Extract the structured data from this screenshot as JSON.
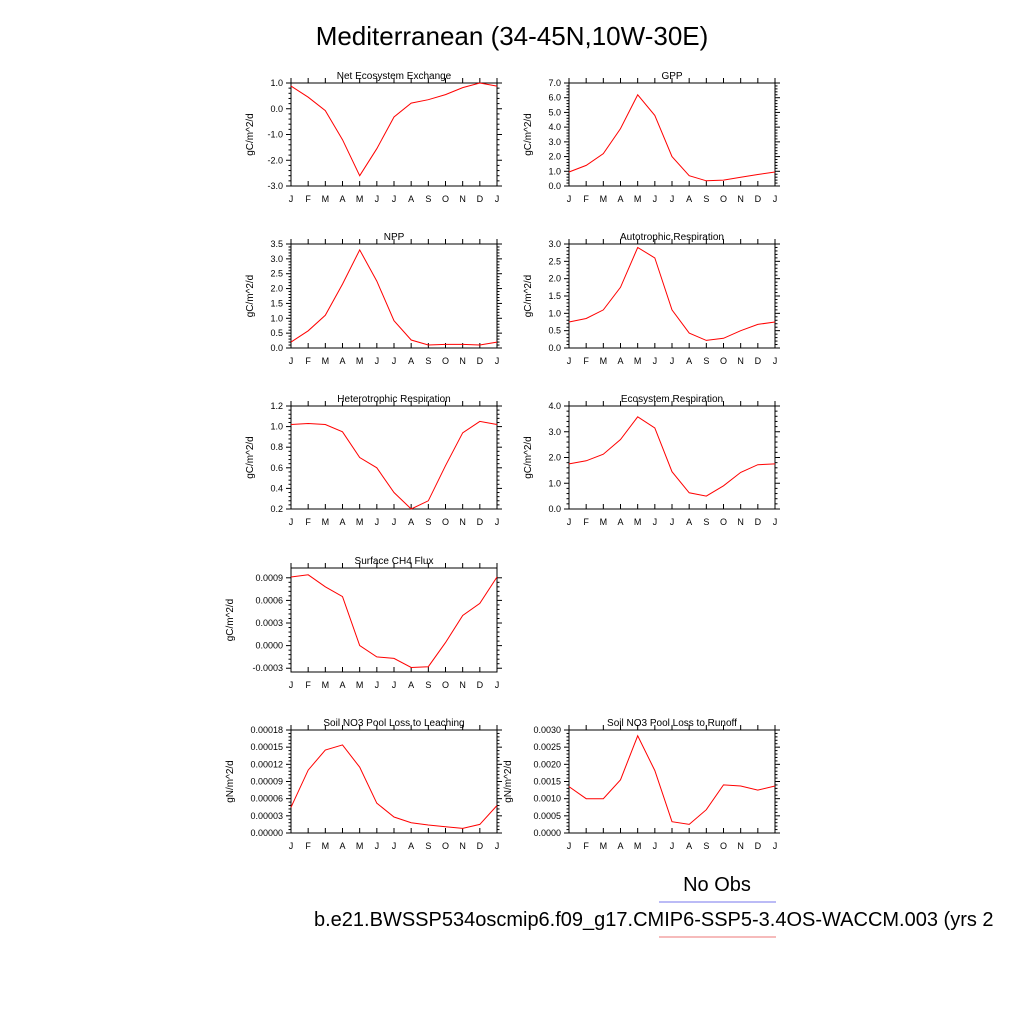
{
  "figure": {
    "title": "Mediterranean (34-45N,10W-30E)",
    "legend_label": "No Obs",
    "legend_line_colors": [
      "#7777ee",
      "#ee7777"
    ],
    "case_id": "b.e21.BWSSP534oscmip6.f09_g17.CMIP6-SSP5-3.4OS-WACCM.003 (yrs 2",
    "series_color": "#ff0000"
  },
  "chart_data": [
    {
      "type": "line",
      "title": "Net Ecosystem Exchange",
      "ylabel": "gC/m^2/d",
      "categories": [
        "J",
        "F",
        "M",
        "A",
        "M",
        "J",
        "J",
        "A",
        "S",
        "O",
        "N",
        "D",
        "J"
      ],
      "values": [
        0.88,
        0.45,
        -0.07,
        -1.2,
        -2.6,
        -1.55,
        -0.32,
        0.22,
        0.35,
        0.55,
        0.82,
        1.0,
        0.88
      ],
      "ylim": [
        -3.0,
        1.0
      ],
      "yticks": [
        "-3.0",
        "-2.0",
        "-1.0",
        "0.0",
        "1.0"
      ],
      "ytick_values": [
        -3.0,
        -2.0,
        -1.0,
        0.0,
        1.0
      ]
    },
    {
      "type": "line",
      "title": "GPP",
      "ylabel": "gC/m^2/d",
      "categories": [
        "J",
        "F",
        "M",
        "A",
        "M",
        "J",
        "J",
        "A",
        "S",
        "O",
        "N",
        "D",
        "J"
      ],
      "values": [
        0.95,
        1.4,
        2.2,
        3.9,
        6.2,
        4.8,
        2.0,
        0.7,
        0.35,
        0.4,
        0.6,
        0.78,
        0.95
      ],
      "ylim": [
        0.0,
        7.0
      ],
      "yticks": [
        "0.0",
        "1.0",
        "2.0",
        "3.0",
        "4.0",
        "5.0",
        "6.0",
        "7.0"
      ],
      "ytick_values": [
        0,
        1,
        2,
        3,
        4,
        5,
        6,
        7
      ]
    },
    {
      "type": "line",
      "title": "NPP",
      "ylabel": "gC/m^2/d",
      "categories": [
        "J",
        "F",
        "M",
        "A",
        "M",
        "J",
        "J",
        "A",
        "S",
        "O",
        "N",
        "D",
        "J"
      ],
      "values": [
        0.2,
        0.58,
        1.1,
        2.15,
        3.3,
        2.25,
        0.92,
        0.27,
        0.1,
        0.12,
        0.12,
        0.1,
        0.2
      ],
      "ylim": [
        0.0,
        3.5
      ],
      "yticks": [
        "0.0",
        "0.5",
        "1.0",
        "1.5",
        "2.0",
        "2.5",
        "3.0",
        "3.5"
      ],
      "ytick_values": [
        0,
        0.5,
        1.0,
        1.5,
        2.0,
        2.5,
        3.0,
        3.5
      ]
    },
    {
      "type": "line",
      "title": "Autotrophic Respiration",
      "ylabel": "gC/m^2/d",
      "categories": [
        "J",
        "F",
        "M",
        "A",
        "M",
        "J",
        "J",
        "A",
        "S",
        "O",
        "N",
        "D",
        "J"
      ],
      "values": [
        0.75,
        0.85,
        1.1,
        1.75,
        2.9,
        2.6,
        1.1,
        0.43,
        0.22,
        0.28,
        0.5,
        0.68,
        0.75
      ],
      "ylim": [
        0.0,
        3.0
      ],
      "yticks": [
        "0.0",
        "0.5",
        "1.0",
        "1.5",
        "2.0",
        "2.5",
        "3.0"
      ],
      "ytick_values": [
        0,
        0.5,
        1.0,
        1.5,
        2.0,
        2.5,
        3.0
      ]
    },
    {
      "type": "line",
      "title": "Heterotrophic Respiration",
      "ylabel": "gC/m^2/d",
      "categories": [
        "J",
        "F",
        "M",
        "A",
        "M",
        "J",
        "J",
        "A",
        "S",
        "O",
        "N",
        "D",
        "J"
      ],
      "values": [
        1.02,
        1.03,
        1.02,
        0.95,
        0.7,
        0.6,
        0.36,
        0.2,
        0.28,
        0.62,
        0.94,
        1.05,
        1.02
      ],
      "ylim": [
        0.2,
        1.2
      ],
      "yticks": [
        "0.2",
        "0.4",
        "0.6",
        "0.8",
        "1.0",
        "1.2"
      ],
      "ytick_values": [
        0.2,
        0.4,
        0.6,
        0.8,
        1.0,
        1.2
      ]
    },
    {
      "type": "line",
      "title": "Ecosystem Respiration",
      "ylabel": "gC/m^2/d",
      "categories": [
        "J",
        "F",
        "M",
        "A",
        "M",
        "J",
        "J",
        "A",
        "S",
        "O",
        "N",
        "D",
        "J"
      ],
      "values": [
        1.75,
        1.87,
        2.13,
        2.7,
        3.58,
        3.15,
        1.45,
        0.63,
        0.5,
        0.9,
        1.42,
        1.72,
        1.75
      ],
      "ylim": [
        0.0,
        4.0
      ],
      "yticks": [
        "0.0",
        "1.0",
        "2.0",
        "3.0",
        "4.0"
      ],
      "ytick_values": [
        0,
        1.0,
        2.0,
        3.0,
        4.0
      ]
    },
    {
      "type": "line",
      "title": "Surface CH4 Flux",
      "ylabel": "gC/m^2/d",
      "categories": [
        "J",
        "F",
        "M",
        "A",
        "M",
        "J",
        "J",
        "A",
        "S",
        "O",
        "N",
        "D",
        "J"
      ],
      "values": [
        0.00091,
        0.00094,
        0.00078,
        0.00065,
        0.0,
        -0.00015,
        -0.00017,
        -0.00029,
        -0.00028,
        4e-05,
        0.0004,
        0.00056,
        0.00091
      ],
      "ylim": [
        -0.00035,
        0.00103
      ],
      "yticks": [
        "-0.0003",
        "0.0000",
        "0.0003",
        "0.0006",
        "0.0009"
      ],
      "ytick_values": [
        -0.0003,
        0.0,
        0.0003,
        0.0006,
        0.0009
      ]
    },
    {
      "type": "line",
      "title": "Soil NO3 Pool Loss to Leaching",
      "ylabel": "gN/m^2/d",
      "categories": [
        "J",
        "F",
        "M",
        "A",
        "M",
        "J",
        "J",
        "A",
        "S",
        "O",
        "N",
        "D",
        "J"
      ],
      "values": [
        4.5e-05,
        0.00011,
        0.000145,
        0.000154,
        0.000115,
        5.2e-05,
        2.8e-05,
        1.8e-05,
        1.4e-05,
        1.1e-05,
        8e-06,
        1.5e-05,
        4.8e-05
      ],
      "ylim": [
        0.0,
        0.00018
      ],
      "yticks": [
        "0.00000",
        "0.00003",
        "0.00006",
        "0.00009",
        "0.00012",
        "0.00015",
        "0.00018"
      ],
      "ytick_values": [
        0,
        3e-05,
        6e-05,
        9e-05,
        0.00012,
        0.00015,
        0.00018
      ]
    },
    {
      "type": "line",
      "title": "Soil NO3 Pool Loss to Runoff",
      "ylabel": "gN/m^2/d",
      "categories": [
        "J",
        "F",
        "M",
        "A",
        "M",
        "J",
        "J",
        "A",
        "S",
        "O",
        "N",
        "D",
        "J"
      ],
      "values": [
        0.00135,
        0.001,
        0.001,
        0.00155,
        0.00283,
        0.00182,
        0.00033,
        0.00025,
        0.00068,
        0.0014,
        0.00137,
        0.00125,
        0.00137
      ],
      "ylim": [
        0.0,
        0.003
      ],
      "yticks": [
        "0.0000",
        "0.0005",
        "0.0010",
        "0.0015",
        "0.0020",
        "0.0025",
        "0.0030"
      ],
      "ytick_values": [
        0,
        0.0005,
        0.001,
        0.0015,
        0.002,
        0.0025,
        0.003
      ]
    }
  ]
}
